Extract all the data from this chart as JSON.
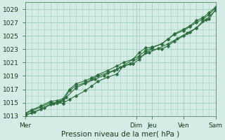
{
  "title": "",
  "xlabel": "Pression niveau de la mer( hPa )",
  "ylim": [
    1013,
    1030
  ],
  "yticks": [
    1013,
    1015,
    1017,
    1019,
    1021,
    1023,
    1025,
    1027,
    1029
  ],
  "background_color": "#d4ece5",
  "grid_color": "#9fcfbf",
  "line_color": "#2d6e3e",
  "x_tick_labels": [
    "Mer",
    "Dim",
    "Jeu",
    "Ven",
    "Sam"
  ],
  "x_tick_positions": [
    0,
    3.5,
    4.0,
    5.0,
    6.0
  ],
  "xlim": [
    0,
    6.0
  ],
  "series1_x": [
    0.0,
    0.2,
    0.5,
    0.8,
    1.0,
    1.2,
    1.4,
    1.6,
    1.9,
    2.1,
    2.3,
    2.6,
    2.9,
    3.1,
    3.4,
    3.6,
    3.8,
    4.0,
    4.3,
    4.5,
    4.7,
    5.0,
    5.2,
    5.4,
    5.6,
    5.8,
    6.0
  ],
  "series1_y": [
    1013.2,
    1013.8,
    1014.3,
    1015.0,
    1015.0,
    1014.9,
    1015.5,
    1016.0,
    1016.8,
    1017.5,
    1018.2,
    1018.8,
    1019.3,
    1020.5,
    1021.5,
    1022.0,
    1022.8,
    1023.2,
    1023.8,
    1024.5,
    1025.2,
    1025.8,
    1026.4,
    1027.0,
    1027.5,
    1028.2,
    1029.2
  ],
  "series2_x": [
    0.0,
    0.2,
    0.5,
    0.8,
    1.0,
    1.2,
    1.4,
    1.6,
    1.9,
    2.1,
    2.3,
    2.6,
    2.9,
    3.1,
    3.4,
    3.6,
    3.8,
    4.0,
    4.3,
    4.5,
    4.7,
    5.0,
    5.2,
    5.4,
    5.6,
    5.8,
    6.0
  ],
  "series2_y": [
    1013.0,
    1013.5,
    1014.0,
    1014.8,
    1015.0,
    1015.3,
    1016.8,
    1017.5,
    1018.0,
    1018.5,
    1019.0,
    1019.5,
    1020.0,
    1020.5,
    1020.8,
    1021.5,
    1022.5,
    1023.0,
    1023.0,
    1023.5,
    1024.2,
    1025.0,
    1025.5,
    1026.2,
    1027.2,
    1027.5,
    1029.0
  ],
  "series3_x": [
    0.0,
    0.2,
    0.5,
    0.8,
    1.0,
    1.2,
    1.4,
    1.6,
    1.9,
    2.1,
    2.3,
    2.6,
    2.9,
    3.1,
    3.4,
    3.6,
    3.8,
    4.0,
    4.3,
    4.5,
    4.7,
    5.0,
    5.2,
    5.4,
    5.6,
    5.8,
    6.0
  ],
  "series3_y": [
    1013.4,
    1013.9,
    1014.5,
    1015.2,
    1015.3,
    1015.6,
    1017.0,
    1017.8,
    1018.3,
    1018.7,
    1019.2,
    1019.8,
    1020.5,
    1021.0,
    1021.5,
    1022.5,
    1023.2,
    1023.3,
    1023.8,
    1024.5,
    1025.3,
    1026.0,
    1026.5,
    1027.3,
    1027.7,
    1028.5,
    1029.3
  ],
  "series4_x": [
    0.0,
    0.3,
    0.6,
    0.9,
    1.1,
    1.3,
    1.6,
    1.9,
    2.2,
    2.5,
    2.8,
    3.0,
    3.3,
    3.6,
    3.9,
    4.2,
    4.5,
    4.8,
    5.1,
    5.4,
    5.7,
    6.0
  ],
  "series4_y": [
    1013.1,
    1013.6,
    1014.2,
    1014.9,
    1015.2,
    1015.8,
    1017.2,
    1017.9,
    1018.5,
    1019.1,
    1019.8,
    1020.3,
    1020.8,
    1021.8,
    1022.5,
    1023.1,
    1023.8,
    1024.6,
    1025.4,
    1026.2,
    1027.4,
    1028.8
  ]
}
